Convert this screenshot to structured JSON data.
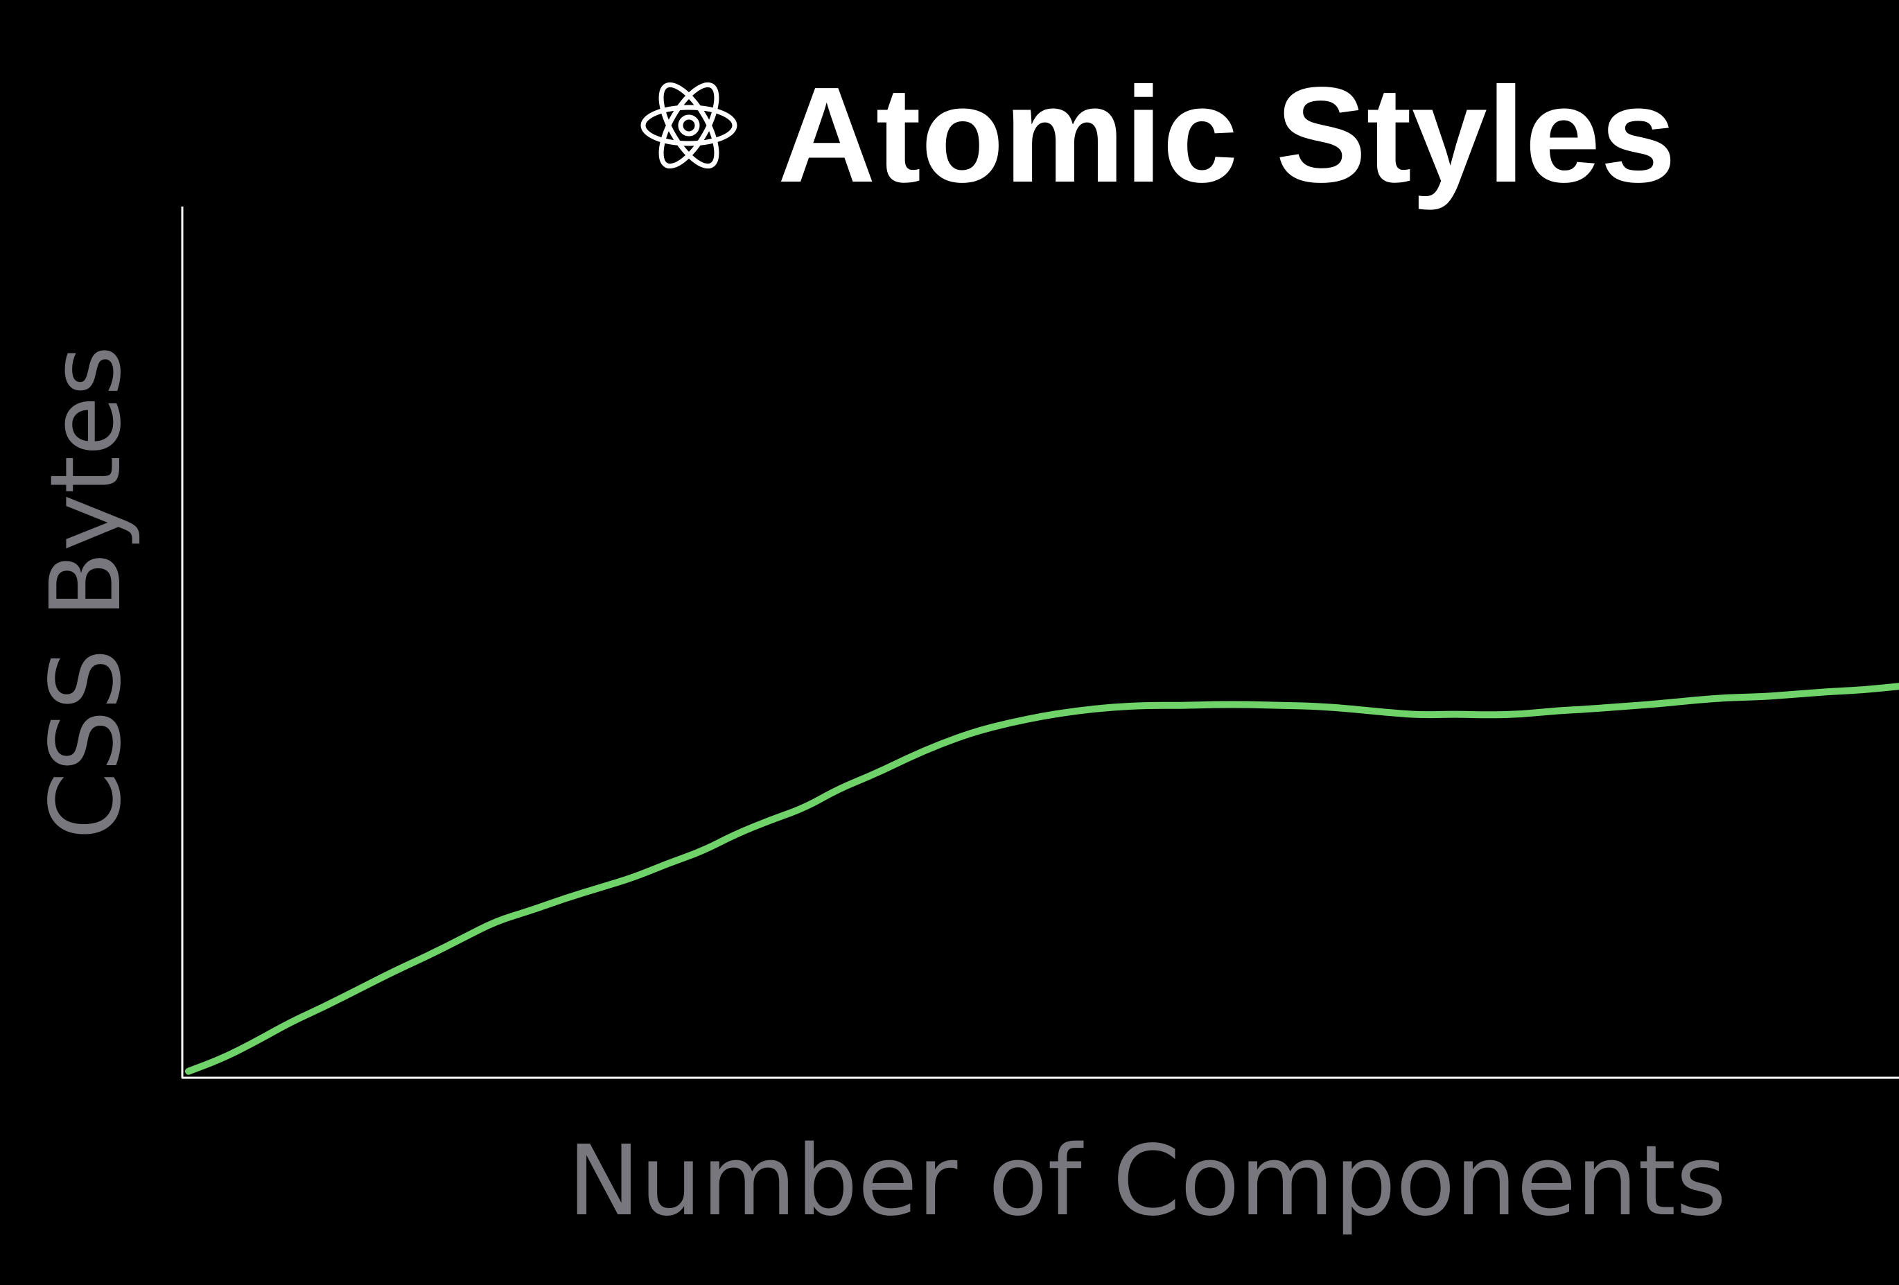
{
  "title": "Atomic Styles",
  "title_icon": "atom-icon",
  "colors": {
    "background": "#000000",
    "axis": "#ffffff",
    "line": "#6fd36a",
    "title": "#ffffff",
    "label": "#77777d"
  },
  "chart_data": {
    "type": "line",
    "title": "Atomic Styles",
    "xlabel": "Number of Components",
    "ylabel": "CSS Bytes",
    "grid": false,
    "ticks": false,
    "xlim": [
      0,
      100
    ],
    "ylim": [
      0,
      100
    ],
    "series": [
      {
        "points": [
          [
            0.0,
            0.5
          ],
          [
            2.0,
            2.0
          ],
          [
            4.0,
            4.0
          ],
          [
            6.0,
            6.2
          ],
          [
            8.0,
            8.0
          ],
          [
            10.0,
            10.0
          ],
          [
            12.0,
            12.0
          ],
          [
            14.0,
            13.8
          ],
          [
            16.0,
            15.8
          ],
          [
            18.0,
            17.8
          ],
          [
            20.0,
            19.0
          ],
          [
            22.0,
            20.4
          ],
          [
            24.0,
            21.6
          ],
          [
            26.0,
            22.8
          ],
          [
            28.0,
            24.4
          ],
          [
            30.0,
            25.8
          ],
          [
            32.0,
            27.8
          ],
          [
            34.0,
            29.4
          ],
          [
            36.0,
            30.8
          ],
          [
            38.0,
            33.0
          ],
          [
            40.0,
            34.6
          ],
          [
            42.0,
            36.5
          ],
          [
            44.0,
            38.2
          ],
          [
            46.0,
            39.6
          ],
          [
            48.0,
            40.6
          ],
          [
            50.0,
            41.4
          ],
          [
            52.0,
            42.0
          ],
          [
            54.0,
            42.4
          ],
          [
            56.0,
            42.6
          ],
          [
            58.0,
            42.6
          ],
          [
            60.0,
            42.7
          ],
          [
            62.0,
            42.7
          ],
          [
            64.0,
            42.6
          ],
          [
            66.0,
            42.5
          ],
          [
            68.0,
            42.2
          ],
          [
            70.0,
            41.8
          ],
          [
            72.0,
            41.5
          ],
          [
            74.0,
            41.6
          ],
          [
            76.0,
            41.5
          ],
          [
            78.0,
            41.6
          ],
          [
            80.0,
            42.0
          ],
          [
            82.0,
            42.2
          ],
          [
            84.0,
            42.5
          ],
          [
            86.0,
            42.8
          ],
          [
            88.0,
            43.2
          ],
          [
            90.0,
            43.5
          ],
          [
            92.0,
            43.6
          ],
          [
            94.0,
            43.9
          ],
          [
            96.0,
            44.2
          ],
          [
            98.0,
            44.4
          ],
          [
            100.0,
            44.8
          ]
        ]
      }
    ]
  }
}
